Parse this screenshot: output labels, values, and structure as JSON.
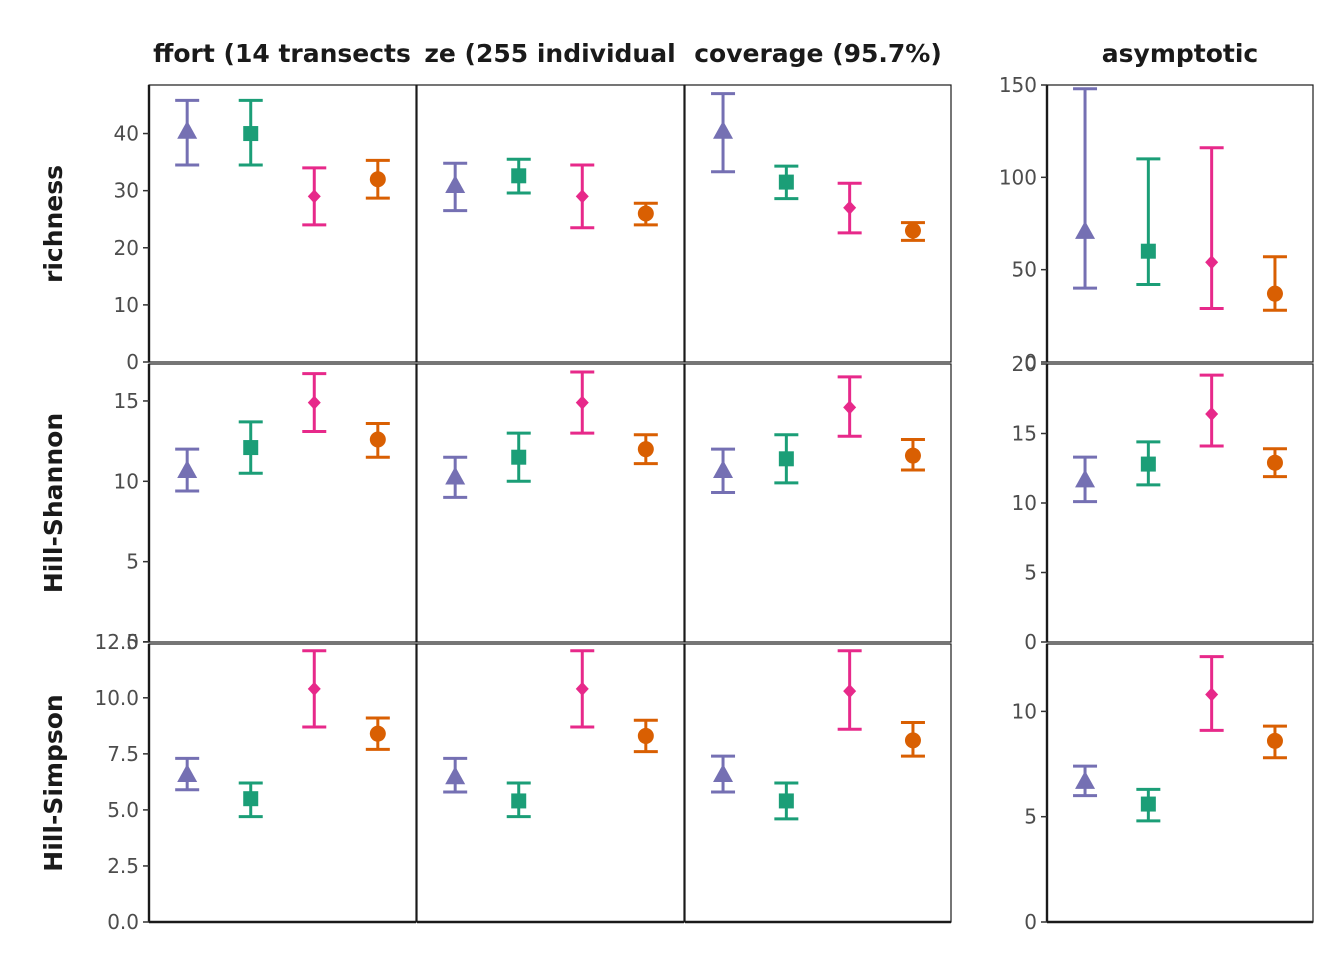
{
  "column_titles": [
    "ffort (14 transects",
    "ze (255 individual",
    "coverage (95.7%)",
    "asymptotic"
  ],
  "row_titles": [
    "richness",
    "Hill-Shannon",
    "Hill-Simpson"
  ],
  "colors": [
    "#7570b3",
    "#1b9e77",
    "#e7298a",
    "#d95f02"
  ],
  "markers": [
    "triangle",
    "square",
    "diamond",
    "circle"
  ],
  "chart_data": {
    "type": "scatter",
    "layout": "facet grid 3 rows x 4 columns, point estimate with error bars, 4 groups per panel",
    "grid": false,
    "legend": "none",
    "rows": [
      {
        "name": "richness",
        "shared_y": {
          "ylim": [
            0,
            48.5
          ],
          "ticks": [
            "0",
            "10",
            "20",
            "30",
            "40"
          ],
          "tick_values": [
            0,
            10,
            20,
            30,
            40
          ]
        },
        "panels": [
          {
            "column": "ffort (14 transects",
            "est": [
              40.5,
              40.0,
              29.0,
              32.0
            ],
            "lo": [
              34.5,
              34.5,
              24.0,
              28.7
            ],
            "hi": [
              45.8,
              45.8,
              34.0,
              35.3
            ]
          },
          {
            "column": "ze (255 individual",
            "est": [
              31.0,
              32.6,
              29.0,
              26.0
            ],
            "lo": [
              26.5,
              29.6,
              23.5,
              24.0
            ],
            "hi": [
              34.8,
              35.5,
              34.5,
              27.8
            ]
          },
          {
            "column": "coverage (95.7%)",
            "est": [
              40.5,
              31.5,
              27.0,
              23.0
            ],
            "lo": [
              33.3,
              28.6,
              22.6,
              21.3
            ],
            "hi": [
              47.0,
              34.3,
              31.3,
              24.4
            ]
          }
        ],
        "asymptotic": {
          "ylim": [
            0,
            150
          ],
          "ticks": [
            "0",
            "50",
            "100",
            "150"
          ],
          "tick_values": [
            0,
            50,
            100,
            150
          ],
          "est": [
            71,
            60,
            54,
            37
          ],
          "lo": [
            40,
            42,
            29,
            28
          ],
          "hi": [
            148,
            110,
            116,
            57
          ]
        }
      },
      {
        "name": "Hill-Shannon",
        "shared_y": {
          "ylim": [
            0,
            17.3
          ],
          "ticks": [
            "0",
            "5",
            "10",
            "15"
          ],
          "tick_values": [
            0,
            5,
            10,
            15
          ]
        },
        "panels": [
          {
            "column": "ffort (14 transects",
            "est": [
              10.7,
              12.1,
              14.9,
              12.6
            ],
            "lo": [
              9.4,
              10.5,
              13.1,
              11.5
            ],
            "hi": [
              12.0,
              13.7,
              16.7,
              13.6
            ]
          },
          {
            "column": "ze (255 individual",
            "est": [
              10.3,
              11.5,
              14.9,
              12.0
            ],
            "lo": [
              9.0,
              10.0,
              13.0,
              11.1
            ],
            "hi": [
              11.5,
              13.0,
              16.8,
              12.9
            ]
          },
          {
            "column": "coverage (95.7%)",
            "est": [
              10.7,
              11.4,
              14.6,
              11.6
            ],
            "lo": [
              9.3,
              9.9,
              12.8,
              10.7
            ],
            "hi": [
              12.0,
              12.9,
              16.5,
              12.6
            ]
          }
        ],
        "asymptotic": {
          "ylim": [
            0,
            20
          ],
          "ticks": [
            "0",
            "5",
            "10",
            "15",
            "20"
          ],
          "tick_values": [
            0,
            5,
            10,
            15,
            20
          ],
          "est": [
            11.7,
            12.8,
            16.4,
            12.9
          ],
          "lo": [
            10.1,
            11.3,
            14.1,
            11.9
          ],
          "hi": [
            13.3,
            14.4,
            19.2,
            13.9
          ]
        }
      },
      {
        "name": "Hill-Simpson",
        "shared_y": {
          "ylim": [
            0,
            12.4
          ],
          "ticks": [
            "0.0",
            "2.5",
            "5.0",
            "7.5",
            "10.0",
            "12.5"
          ],
          "tick_values": [
            0,
            2.5,
            5,
            7.5,
            10,
            12.5
          ]
        },
        "panels": [
          {
            "column": "ffort (14 transects",
            "est": [
              6.6,
              5.5,
              10.4,
              8.4
            ],
            "lo": [
              5.9,
              4.7,
              8.7,
              7.7
            ],
            "hi": [
              7.3,
              6.2,
              12.1,
              9.1
            ]
          },
          {
            "column": "ze (255 individual",
            "est": [
              6.5,
              5.4,
              10.4,
              8.3
            ],
            "lo": [
              5.8,
              4.7,
              8.7,
              7.6
            ],
            "hi": [
              7.3,
              6.2,
              12.1,
              9.0
            ]
          },
          {
            "column": "coverage (95.7%)",
            "est": [
              6.6,
              5.4,
              10.3,
              8.1
            ],
            "lo": [
              5.8,
              4.6,
              8.6,
              7.4
            ],
            "hi": [
              7.4,
              6.2,
              12.1,
              8.9
            ]
          }
        ],
        "asymptotic": {
          "ylim": [
            0,
            13.2
          ],
          "ticks": [
            "0",
            "5",
            "10"
          ],
          "tick_values": [
            0,
            5,
            10
          ],
          "est": [
            6.7,
            5.6,
            10.8,
            8.6
          ],
          "lo": [
            6.0,
            4.8,
            9.1,
            7.8
          ],
          "hi": [
            7.4,
            6.3,
            12.6,
            9.3
          ]
        }
      }
    ]
  }
}
